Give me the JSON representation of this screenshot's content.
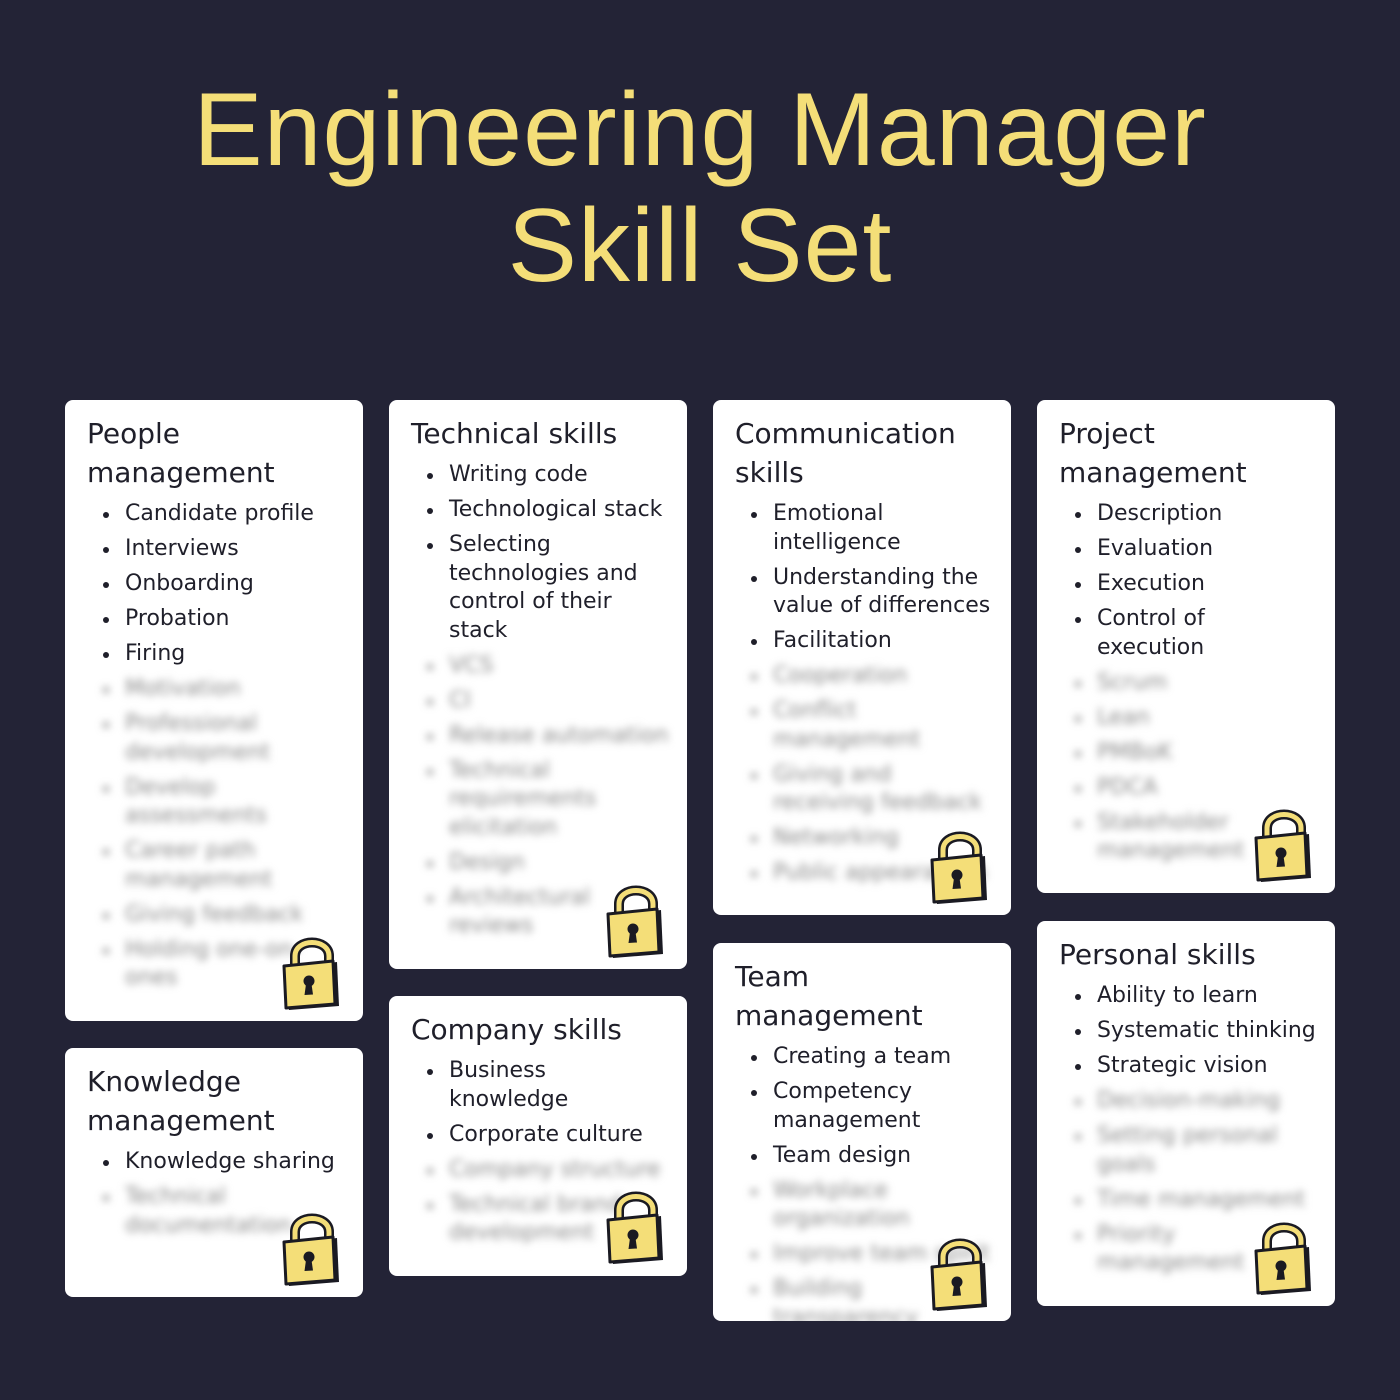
{
  "title": {
    "line1": "Engineering Manager",
    "line2": "Skill Set"
  },
  "accent_color": "#F4DE78",
  "background_color": "#232336",
  "lock_icon": "padlock-icon",
  "cards": [
    {
      "id": "people",
      "title": "People management",
      "items": [
        "Candidate profile",
        "Interviews",
        "Onboarding",
        "Probation",
        "Firing"
      ],
      "blurred": [
        "Motivation",
        "Professional development",
        "Develop assessments",
        "Career path management",
        "Giving feedback",
        "Holding one-on-ones"
      ]
    },
    {
      "id": "knowledge",
      "title": "Knowledge management",
      "items": [
        "Knowledge sharing"
      ],
      "blurred": [
        "Technical documentation"
      ]
    },
    {
      "id": "technical",
      "title": "Technical skills",
      "items": [
        "Writing code",
        "Technological stack",
        "Selecting technologies and control of their stack"
      ],
      "blurred": [
        "VCS",
        "CI",
        "Release automation",
        "Technical requirements elicitation",
        "Design",
        "Architectural reviews"
      ]
    },
    {
      "id": "company",
      "title": "Company skills",
      "items": [
        "Business knowledge",
        "Corporate culture"
      ],
      "blurred": [
        "Company structure",
        "Technical brand development"
      ]
    },
    {
      "id": "communication",
      "title": "Communication skills",
      "items": [
        "Emotional intelligence",
        "Understanding the value of differences",
        "Facilitation"
      ],
      "blurred": [
        "Cooperation",
        "Conflict management",
        "Giving and receiving feedback",
        "Networking",
        "Public appearances"
      ]
    },
    {
      "id": "team",
      "title": "Team management",
      "items": [
        "Creating a team",
        "Competency management",
        "Team design"
      ],
      "blurred": [
        "Workplace organization",
        "Improve team spirit",
        "Building transparency"
      ]
    },
    {
      "id": "project",
      "title": "Project management",
      "items": [
        "Description",
        "Evaluation",
        "Execution",
        "Control of execution"
      ],
      "blurred": [
        "Scrum",
        "Lean",
        "PMBoK",
        "PDCA",
        "Stakeholder management"
      ]
    },
    {
      "id": "personal",
      "title": "Personal skills",
      "items": [
        "Ability to learn",
        "Systematic thinking",
        "Strategic vision"
      ],
      "blurred": [
        "Decision-making",
        "Setting personal goals",
        "Time management",
        "Priority management"
      ]
    }
  ]
}
